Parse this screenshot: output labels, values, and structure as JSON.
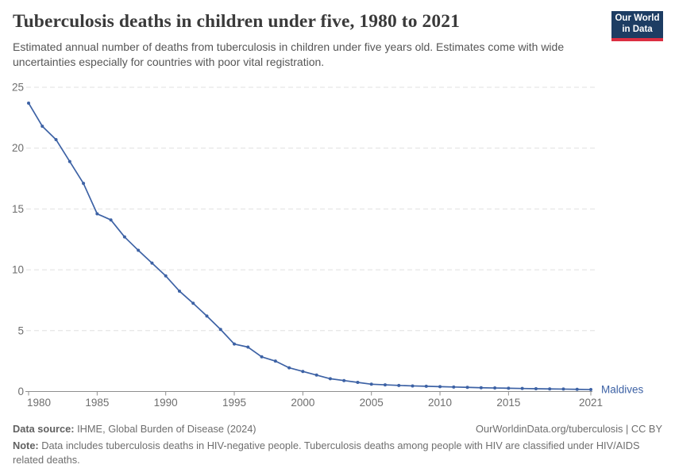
{
  "header": {
    "title": "Tuberculosis deaths in children under five, 1980 to 2021",
    "subtitle": "Estimated annual number of deaths from tuberculosis in children under five years old. Estimates come with wide uncertainties especially for countries with poor vital registration.",
    "logo": {
      "line1": "Our World",
      "line2": "in Data",
      "bg_color": "#1d3d63",
      "accent_color": "#dc2e41"
    }
  },
  "chart_data": {
    "type": "line",
    "title": "Tuberculosis deaths in children under five, 1980 to 2021",
    "xlabel": "",
    "ylabel": "",
    "xlim": [
      1980,
      2021
    ],
    "ylim": [
      0,
      25
    ],
    "x_ticks": [
      1980,
      1985,
      1990,
      1995,
      2000,
      2005,
      2010,
      2015,
      2021
    ],
    "y_ticks": [
      0,
      5,
      10,
      15,
      20,
      25
    ],
    "grid": "horizontal-dashed",
    "legend_position": "end-of-line-label",
    "colors": {
      "line": "#3d62a5",
      "gridline": "#e0e0e0",
      "axis": "#8f8f8f",
      "tick_label": "#6e6e6e"
    },
    "series": [
      {
        "name": "Maldives",
        "color": "#3d62a5",
        "x": [
          1980,
          1981,
          1982,
          1983,
          1984,
          1985,
          1986,
          1987,
          1988,
          1989,
          1990,
          1991,
          1992,
          1993,
          1994,
          1995,
          1996,
          1997,
          1998,
          1999,
          2000,
          2001,
          2002,
          2003,
          2004,
          2005,
          2006,
          2007,
          2008,
          2009,
          2010,
          2011,
          2012,
          2013,
          2014,
          2015,
          2016,
          2017,
          2018,
          2019,
          2020,
          2021
        ],
        "values": [
          23.7,
          21.8,
          20.7,
          18.9,
          17.1,
          14.6,
          14.1,
          12.7,
          11.6,
          10.55,
          9.5,
          8.25,
          7.25,
          6.2,
          5.1,
          3.9,
          3.65,
          2.85,
          2.5,
          1.95,
          1.65,
          1.35,
          1.05,
          0.9,
          0.75,
          0.6,
          0.55,
          0.5,
          0.46,
          0.43,
          0.4,
          0.37,
          0.34,
          0.31,
          0.29,
          0.27,
          0.25,
          0.23,
          0.21,
          0.2,
          0.18,
          0.16
        ]
      }
    ]
  },
  "footer": {
    "datasource_label": "Data source:",
    "datasource": "IHME, Global Burden of Disease (2024)",
    "link": "OurWorldinData.org/tuberculosis | CC BY",
    "note_label": "Note:",
    "note": "Data includes tuberculosis deaths in HIV-negative people. Tuberculosis deaths among people with HIV are classified under HIV/AIDS related deaths."
  }
}
